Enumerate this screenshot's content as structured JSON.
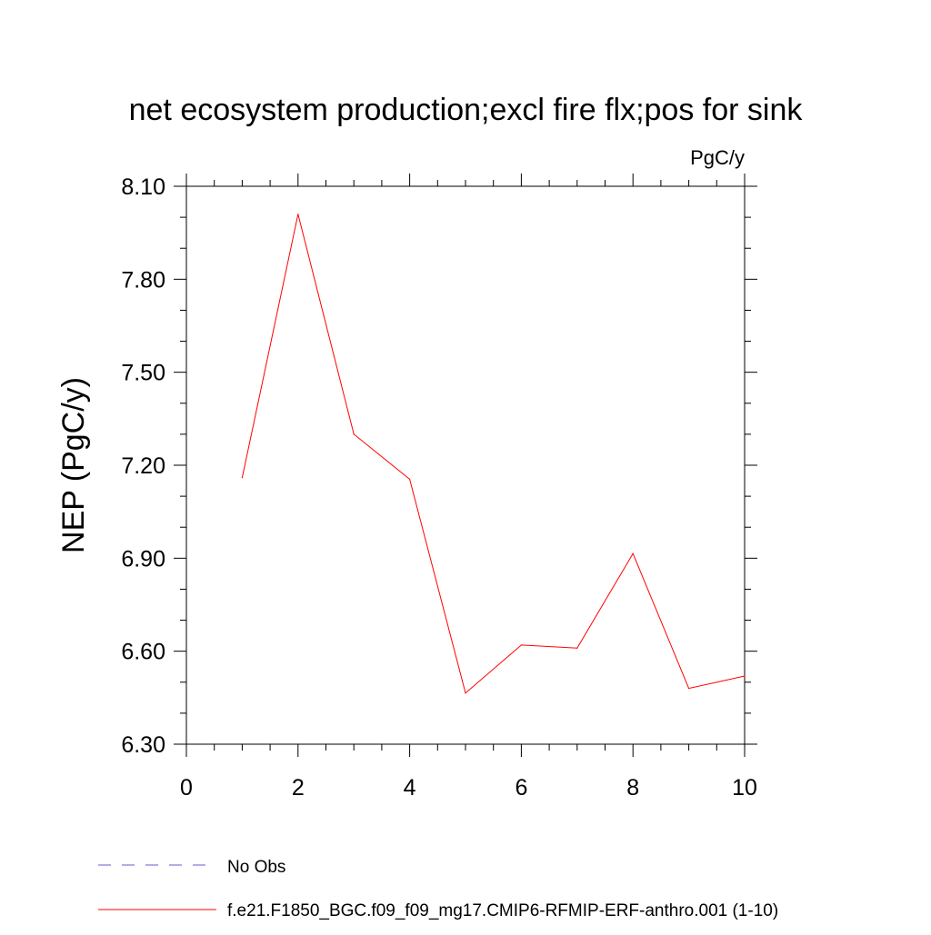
{
  "chart_data": {
    "type": "line",
    "title": "net ecosystem production;excl fire flx;pos for sink",
    "units_label": "PgC/y",
    "ylabel": "NEP  (PgC/y)",
    "xlabel": "",
    "xlim": [
      0,
      10
    ],
    "ylim": [
      6.3,
      8.1
    ],
    "x_ticks": [
      0,
      2,
      4,
      6,
      8,
      10
    ],
    "x_tick_labels": [
      "0",
      "2",
      "4",
      "6",
      "8",
      "10"
    ],
    "y_ticks": [
      6.3,
      6.6,
      6.9,
      7.2,
      7.5,
      7.8,
      8.1
    ],
    "y_tick_labels": [
      "6.30",
      "6.60",
      "6.90",
      "7.20",
      "7.50",
      "7.80",
      "8.10"
    ],
    "grid": false,
    "legend_position": "bottom-left",
    "series": [
      {
        "name": "f.e21.F1850_BGC.f09_f09_mg17.CMIP6-RFMIP-ERF-anthro.001 (1-10)",
        "color": "#ff0000",
        "dash": "solid",
        "x": [
          1,
          2,
          3,
          4,
          5,
          6,
          7,
          8,
          9,
          10
        ],
        "y": [
          7.16,
          8.01,
          7.3,
          7.155,
          6.465,
          6.62,
          6.61,
          6.915,
          6.48,
          6.52
        ]
      }
    ],
    "legend": [
      {
        "label": "No Obs",
        "color": "#6a5acd",
        "dash": "dashed"
      },
      {
        "label": "f.e21.F1850_BGC.f09_f09_mg17.CMIP6-RFMIP-ERF-anthro.001 (1-10)",
        "color": "#ff0000",
        "dash": "solid"
      }
    ]
  }
}
